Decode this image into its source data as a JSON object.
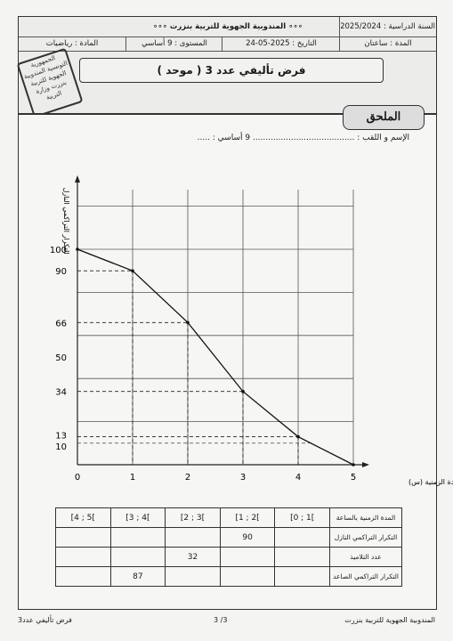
{
  "header": {
    "ministry": "∘∘∘ المندوبية الجهوية للتربية بنزرت ∘∘∘",
    "school_year_label": "السنة الدراسية : 2025/2024",
    "subject": "المادة : رياضيات",
    "level": "المستوى : 9 أساسي",
    "date": "التاريخ : 2025-05-24",
    "duration": "المدة : ساعتان",
    "exam_title": "فرض تأليفي عدد 3 ( موحد )",
    "stamp_text": "الجمهورية التونسية المندوبية الجهوية للتربية بنزرت وزارة التربية"
  },
  "annex": {
    "tab_label": "الملحق",
    "name_line": "الإسم و اللقب : ........................................ 9 أساسي : ....."
  },
  "chart_data": {
    "type": "line",
    "ylabel": "التكرار التراكمي النازل",
    "xlabel": "المدة الزمنية (س)",
    "x": [
      0,
      1,
      2,
      3,
      4,
      5
    ],
    "y": [
      100,
      90,
      66,
      34,
      13,
      0
    ],
    "x_ticks": [
      "0",
      "1",
      "2",
      "3",
      "4",
      "5"
    ],
    "y_ticks": [
      "10",
      "13",
      "34",
      "50",
      "66",
      "90",
      "100"
    ],
    "xlim": [
      0,
      5
    ],
    "ylim": [
      0,
      100
    ],
    "grid": true
  },
  "table": {
    "row_labels": [
      "المدة الزمنية بالساعة",
      "التكرار التراكمي النازل",
      "عدد التلاميذ",
      "التكرار التراكمي الصاعد"
    ],
    "intervals": [
      "[0 ; 1[",
      "[1 ; 2[",
      "[2 ; 3[",
      "[3 ; 4[",
      "[4 ; 5["
    ],
    "rows": [
      [
        "",
        "90",
        "",
        "",
        ""
      ],
      [
        "",
        "",
        "32",
        "",
        ""
      ],
      [
        "",
        "",
        "",
        "87",
        ""
      ]
    ]
  },
  "footer": {
    "left": "فرض تأليفي عدد3",
    "page": "3 /3",
    "right": "المندوبية الجهوية للتربية بنزرت"
  }
}
